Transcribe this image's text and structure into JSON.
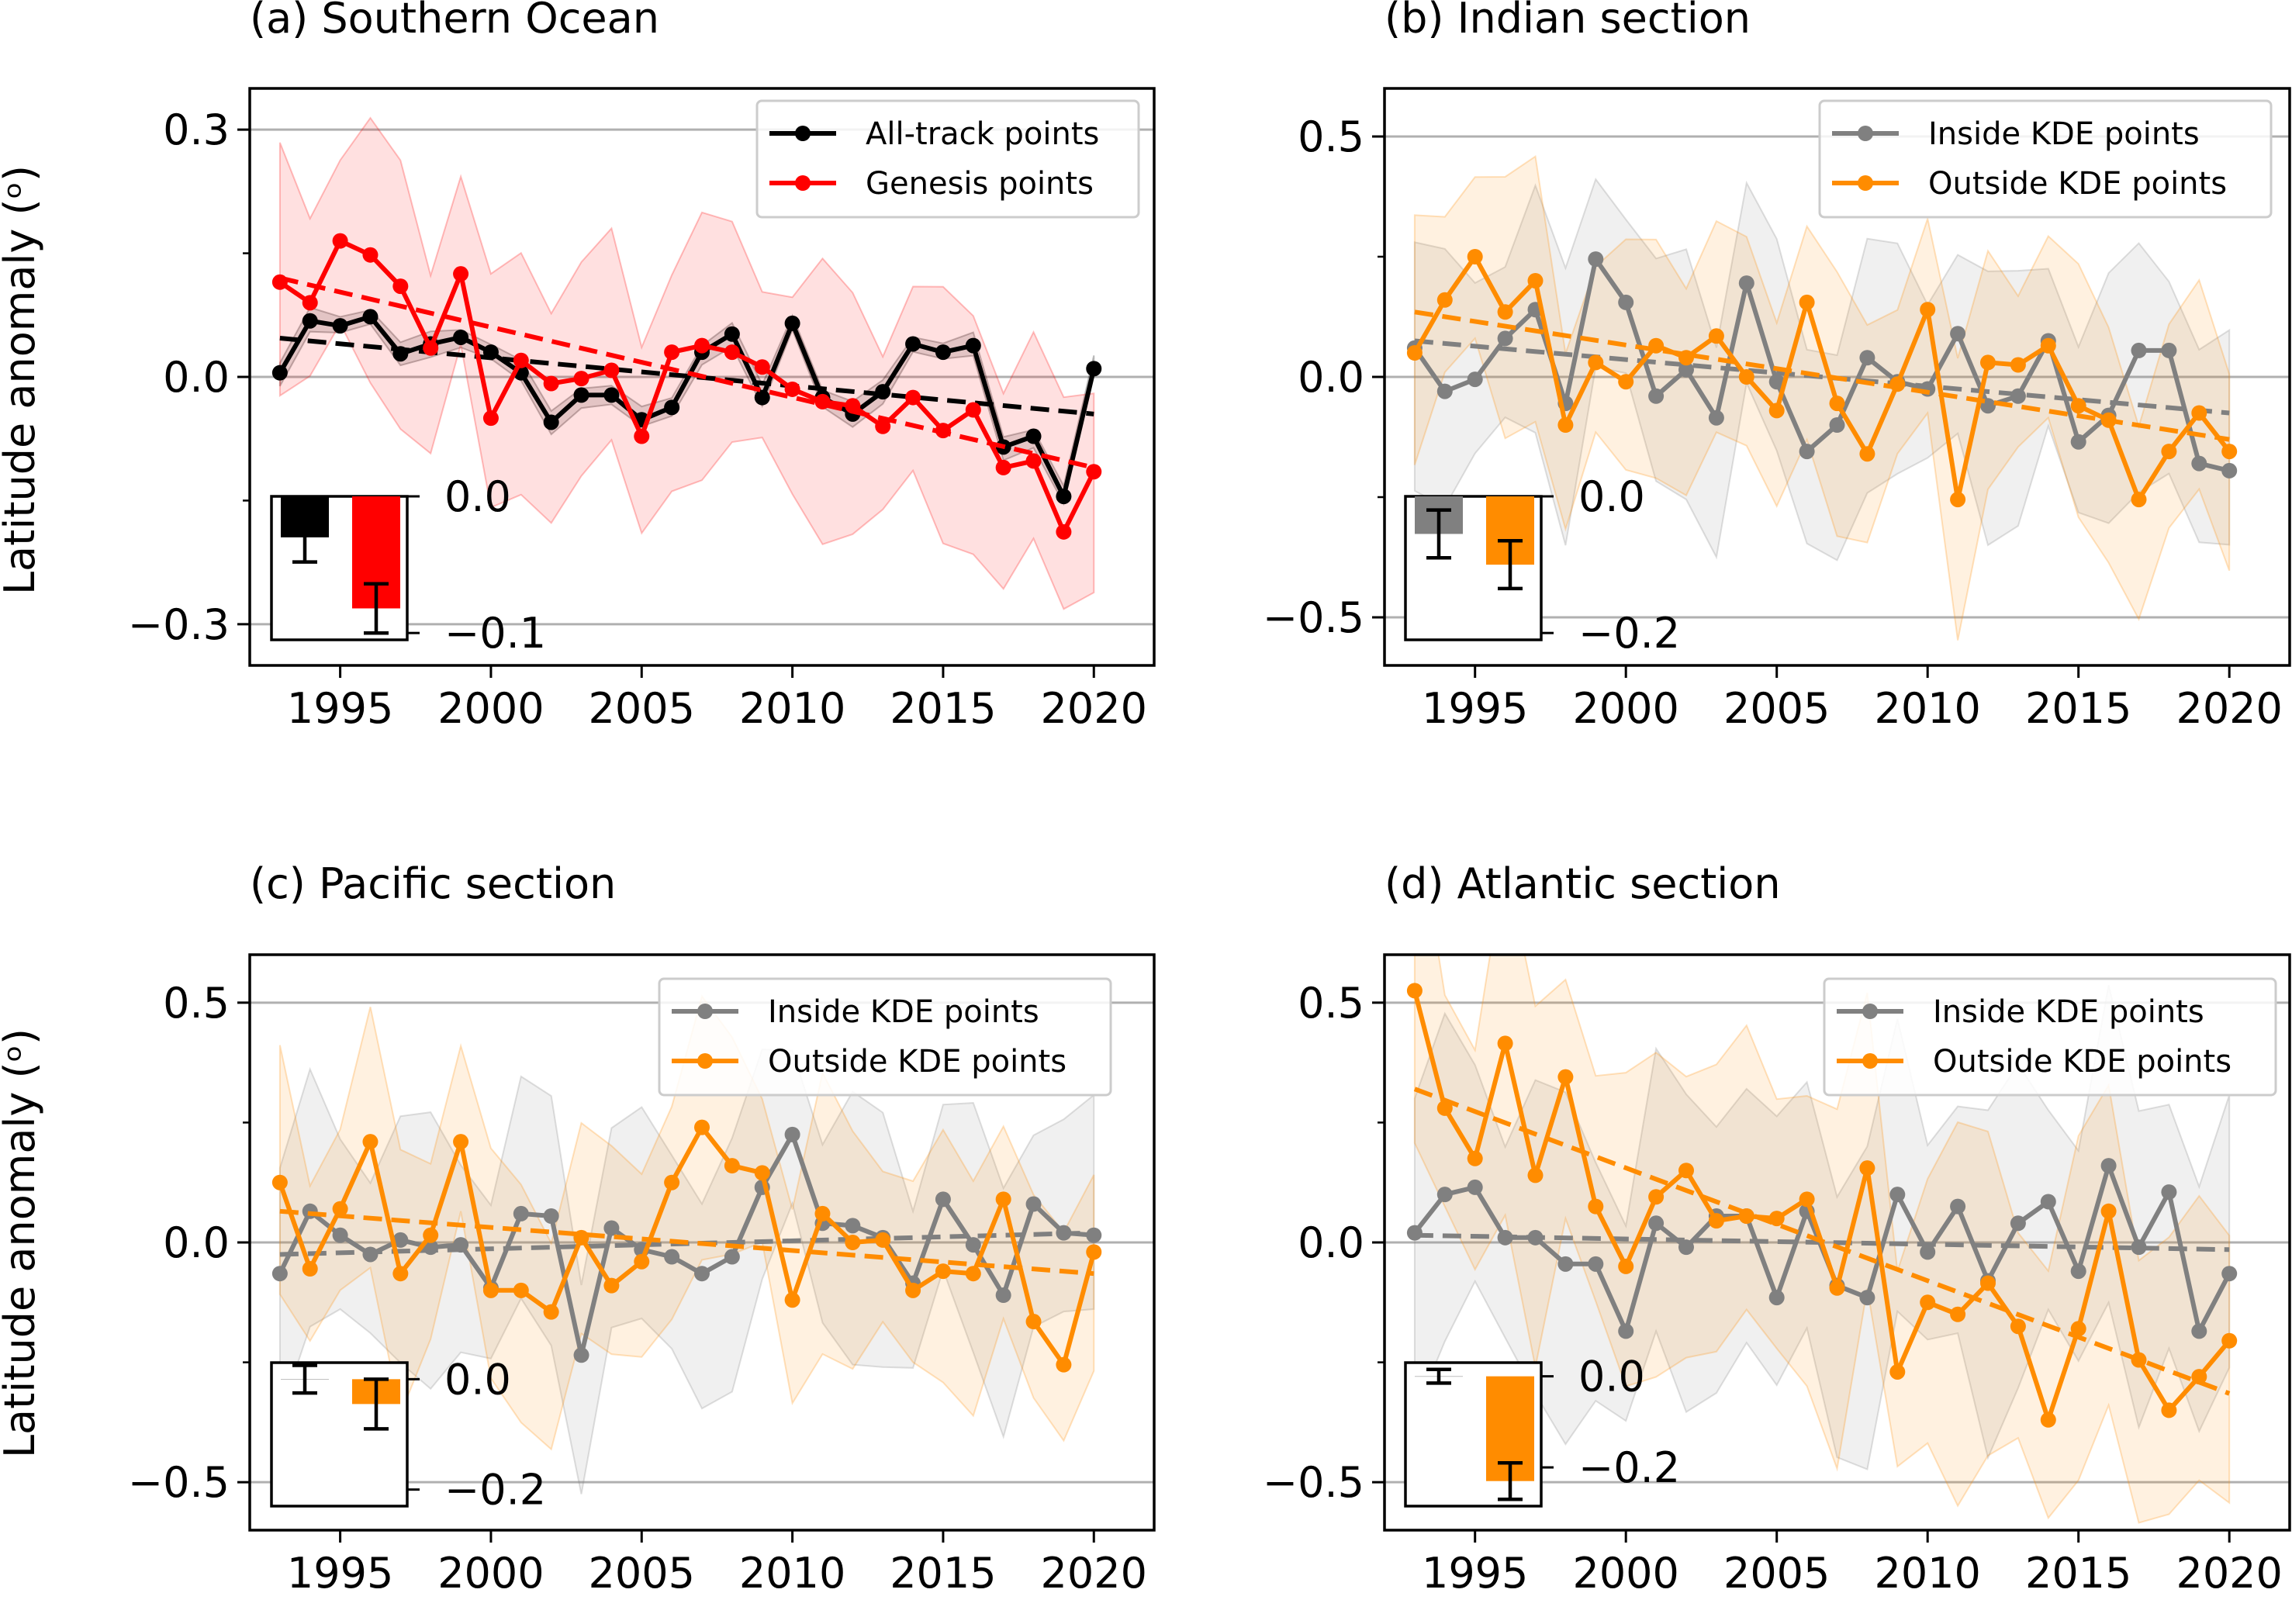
{
  "figure": {
    "ylabel": "Latitude anomaly (ᵒ)"
  },
  "chart_data": [
    {
      "id": "a",
      "type": "line",
      "title": "(a) Southern Ocean",
      "ylabel": "Latitude anomaly (ᵒ)",
      "xlim": [
        1992,
        2022
      ],
      "ylim": [
        -0.35,
        0.35
      ],
      "yticks": [
        -0.3,
        0.0,
        0.3
      ],
      "ytick_labels": [
        "−0.3",
        "0.0",
        "0.3"
      ],
      "minor_yticks": [
        -0.15,
        0.15
      ],
      "xticks": [
        1995,
        2000,
        2005,
        2010,
        2015,
        2020
      ],
      "xtick_labels": [
        "1995",
        "2000",
        "2005",
        "2010",
        "2015",
        "2020"
      ],
      "grid": "horizontal at major y ticks",
      "legend_position": "top-right",
      "x": [
        1993,
        1994,
        1995,
        1996,
        1997,
        1998,
        1999,
        2000,
        2001,
        2002,
        2003,
        2004,
        2005,
        2006,
        2007,
        2008,
        2009,
        2010,
        2011,
        2012,
        2013,
        2014,
        2015,
        2016,
        2017,
        2018,
        2019,
        2020
      ],
      "series": [
        {
          "name": "All-track points",
          "color": "#000000",
          "values": [
            0.005,
            0.068,
            0.062,
            0.073,
            0.028,
            0.04,
            0.048,
            0.03,
            0.005,
            -0.055,
            -0.022,
            -0.022,
            -0.052,
            -0.037,
            0.03,
            0.052,
            -0.025,
            0.065,
            -0.025,
            -0.045,
            -0.018,
            0.04,
            0.03,
            0.038,
            -0.085,
            -0.072,
            -0.145,
            0.01
          ],
          "trend": [
            0.047,
            -0.045
          ],
          "band_halfwidth": 0.012
        },
        {
          "name": "Genesis points",
          "color": "#ff0000",
          "values": [
            0.115,
            0.09,
            0.165,
            0.148,
            0.11,
            0.035,
            0.125,
            -0.05,
            0.02,
            -0.008,
            -0.002,
            0.008,
            -0.072,
            0.03,
            0.038,
            0.03,
            0.012,
            -0.015,
            -0.03,
            -0.035,
            -0.06,
            -0.025,
            -0.065,
            -0.04,
            -0.11,
            -0.102,
            -0.188,
            -0.115
          ],
          "trend": [
            0.12,
            -0.11
          ],
          "band_halfwidth": 0.13
        }
      ],
      "inset": {
        "ylim": [
          -0.105,
          0.0
        ],
        "yticks": [
          0.0,
          -0.1
        ],
        "ytick_labels": [
          "0.0",
          "−0.1"
        ],
        "bars": [
          {
            "series": "All-track points",
            "value": -0.03,
            "err": 0.018,
            "color": "#000000"
          },
          {
            "series": "Genesis points",
            "value": -0.082,
            "err": 0.018,
            "color": "#ff0000"
          }
        ]
      }
    },
    {
      "id": "b",
      "type": "line",
      "title": "(b) Indian section",
      "ylabel": "",
      "xlim": [
        1992,
        2022
      ],
      "ylim": [
        -0.6,
        0.6
      ],
      "yticks": [
        -0.5,
        0.0,
        0.5
      ],
      "ytick_labels": [
        "−0.5",
        "0.0",
        "0.5"
      ],
      "minor_yticks": [
        -0.25,
        0.25
      ],
      "xticks": [
        1995,
        2000,
        2005,
        2010,
        2015,
        2020
      ],
      "xtick_labels": [
        "1995",
        "2000",
        "2005",
        "2010",
        "2015",
        "2020"
      ],
      "grid": "horizontal at major y ticks",
      "legend_position": "top-right",
      "x": [
        1993,
        1994,
        1995,
        1996,
        1997,
        1998,
        1999,
        2000,
        2001,
        2002,
        2003,
        2004,
        2005,
        2006,
        2007,
        2008,
        2009,
        2010,
        2011,
        2012,
        2013,
        2014,
        2015,
        2016,
        2017,
        2018,
        2019,
        2020
      ],
      "series": [
        {
          "name": "Inside KDE points",
          "color": "#808080",
          "values": [
            0.06,
            -0.03,
            -0.005,
            0.08,
            0.14,
            -0.055,
            0.245,
            0.155,
            -0.04,
            0.015,
            -0.085,
            0.195,
            -0.01,
            -0.155,
            -0.1,
            0.04,
            -0.01,
            -0.025,
            0.09,
            -0.06,
            -0.04,
            0.075,
            -0.135,
            -0.08,
            0.055,
            0.055,
            -0.18,
            -0.195
          ],
          "trend": [
            0.075,
            -0.075
          ],
          "band_halfwidth": 0.22
        },
        {
          "name": "Outside KDE points",
          "color": "#ff8c00",
          "values": [
            0.05,
            0.16,
            0.25,
            0.135,
            0.2,
            -0.1,
            0.03,
            -0.01,
            0.065,
            0.04,
            0.085,
            0.0,
            -0.07,
            0.155,
            -0.055,
            -0.16,
            -0.015,
            0.14,
            -0.255,
            0.03,
            0.025,
            0.065,
            -0.06,
            -0.09,
            -0.255,
            -0.155,
            -0.075,
            -0.155
          ],
          "trend": [
            0.135,
            -0.13
          ],
          "band_halfwidth": 0.22
        }
      ],
      "inset": {
        "ylim": [
          -0.21,
          0.0
        ],
        "yticks": [
          0.0,
          -0.2
        ],
        "ytick_labels": [
          "0.0",
          "−0.2"
        ],
        "bars": [
          {
            "series": "Inside KDE points",
            "value": -0.055,
            "err": 0.035,
            "color": "#808080"
          },
          {
            "series": "Outside KDE points",
            "value": -0.1,
            "err": 0.035,
            "color": "#ff8c00"
          }
        ]
      }
    },
    {
      "id": "c",
      "type": "line",
      "title": "(c) Pacific section",
      "ylabel": "Latitude anomaly (ᵒ)",
      "xlim": [
        1992,
        2022
      ],
      "ylim": [
        -0.6,
        0.6
      ],
      "yticks": [
        -0.5,
        0.0,
        0.5
      ],
      "ytick_labels": [
        "−0.5",
        "0.0",
        "0.5"
      ],
      "minor_yticks": [
        -0.25,
        0.25
      ],
      "xticks": [
        1995,
        2000,
        2005,
        2010,
        2015,
        2020
      ],
      "xtick_labels": [
        "1995",
        "2000",
        "2005",
        "2010",
        "2015",
        "2020"
      ],
      "grid": "horizontal at major y ticks",
      "legend_position": "top-right",
      "x": [
        1993,
        1994,
        1995,
        1996,
        1997,
        1998,
        1999,
        2000,
        2001,
        2002,
        2003,
        2004,
        2005,
        2006,
        2007,
        2008,
        2009,
        2010,
        2011,
        2012,
        2013,
        2014,
        2015,
        2016,
        2017,
        2018,
        2019,
        2020
      ],
      "series": [
        {
          "name": "Inside KDE points",
          "color": "#808080",
          "values": [
            -0.065,
            0.065,
            0.015,
            -0.025,
            0.005,
            -0.01,
            -0.005,
            -0.095,
            0.06,
            0.055,
            -0.235,
            0.03,
            -0.015,
            -0.03,
            -0.065,
            -0.03,
            0.115,
            0.225,
            0.04,
            0.035,
            0.01,
            -0.085,
            0.09,
            -0.005,
            -0.11,
            0.08,
            0.02,
            0.015
          ],
          "trend": [
            -0.025,
            0.02
          ],
          "band_halfwidth": 0.22
        },
        {
          "name": "Outside KDE points",
          "color": "#ff8c00",
          "values": [
            0.125,
            -0.055,
            0.07,
            0.21,
            -0.065,
            0.015,
            0.21,
            -0.1,
            -0.1,
            -0.145,
            0.01,
            -0.09,
            -0.04,
            0.125,
            0.24,
            0.16,
            0.145,
            -0.12,
            0.06,
            0.0,
            0.005,
            -0.1,
            -0.06,
            -0.065,
            0.09,
            -0.165,
            -0.255,
            -0.02
          ],
          "trend": [
            0.065,
            -0.065
          ],
          "band_halfwidth": 0.22
        }
      ],
      "inset": {
        "ylim": [
          -0.23,
          0.03
        ],
        "yticks": [
          0.0,
          -0.2
        ],
        "ytick_labels": [
          "0.0",
          "−0.2"
        ],
        "bars": [
          {
            "series": "Inside KDE points",
            "value": 0.0,
            "err": 0.025,
            "color": "#808080"
          },
          {
            "series": "Outside KDE points",
            "value": -0.045,
            "err": 0.045,
            "color": "#ff8c00"
          }
        ]
      }
    },
    {
      "id": "d",
      "type": "line",
      "title": "(d) Atlantic section",
      "ylabel": "",
      "xlim": [
        1992,
        2022
      ],
      "ylim": [
        -0.6,
        0.6
      ],
      "yticks": [
        -0.5,
        0.0,
        0.5
      ],
      "ytick_labels": [
        "−0.5",
        "0.0",
        "0.5"
      ],
      "minor_yticks": [
        -0.25,
        0.25
      ],
      "xticks": [
        1995,
        2000,
        2005,
        2010,
        2015,
        2020
      ],
      "xtick_labels": [
        "1995",
        "2000",
        "2005",
        "2010",
        "2015",
        "2020"
      ],
      "grid": "horizontal at major y ticks",
      "legend_position": "top-right",
      "x": [
        1993,
        1994,
        1995,
        1996,
        1997,
        1998,
        1999,
        2000,
        2001,
        2002,
        2003,
        2004,
        2005,
        2006,
        2007,
        2008,
        2009,
        2010,
        2011,
        2012,
        2013,
        2014,
        2015,
        2016,
        2017,
        2018,
        2019,
        2020
      ],
      "series": [
        {
          "name": "Inside KDE points",
          "color": "#808080",
          "values": [
            0.02,
            0.1,
            0.115,
            0.01,
            0.01,
            -0.045,
            -0.045,
            -0.185,
            0.04,
            -0.01,
            0.055,
            0.055,
            -0.115,
            0.065,
            -0.09,
            -0.115,
            0.1,
            -0.02,
            0.075,
            -0.08,
            0.04,
            0.085,
            -0.06,
            0.16,
            -0.01,
            0.105,
            -0.185,
            -0.065
          ],
          "trend": [
            0.015,
            -0.015
          ],
          "band_halfwidth": 0.28
        },
        {
          "name": "Outside KDE points",
          "color": "#ff8c00",
          "values": [
            0.525,
            0.28,
            0.175,
            0.415,
            0.14,
            0.345,
            0.075,
            -0.05,
            0.095,
            0.15,
            0.045,
            0.055,
            0.05,
            0.09,
            -0.095,
            0.155,
            -0.27,
            -0.125,
            -0.15,
            -0.085,
            -0.175,
            -0.37,
            -0.18,
            0.065,
            -0.245,
            -0.35,
            -0.28,
            -0.205
          ],
          "trend": [
            0.32,
            -0.315
          ],
          "band_halfwidth": 0.3
        }
      ],
      "inset": {
        "ylim": [
          -0.285,
          0.03
        ],
        "yticks": [
          0.0,
          -0.2
        ],
        "ytick_labels": [
          "0.0",
          "−0.2"
        ],
        "bars": [
          {
            "series": "Inside KDE points",
            "value": 0.0,
            "err": 0.015,
            "color": "#808080"
          },
          {
            "series": "Outside KDE points",
            "value": -0.23,
            "err": 0.04,
            "color": "#ff8c00"
          }
        ]
      }
    }
  ]
}
